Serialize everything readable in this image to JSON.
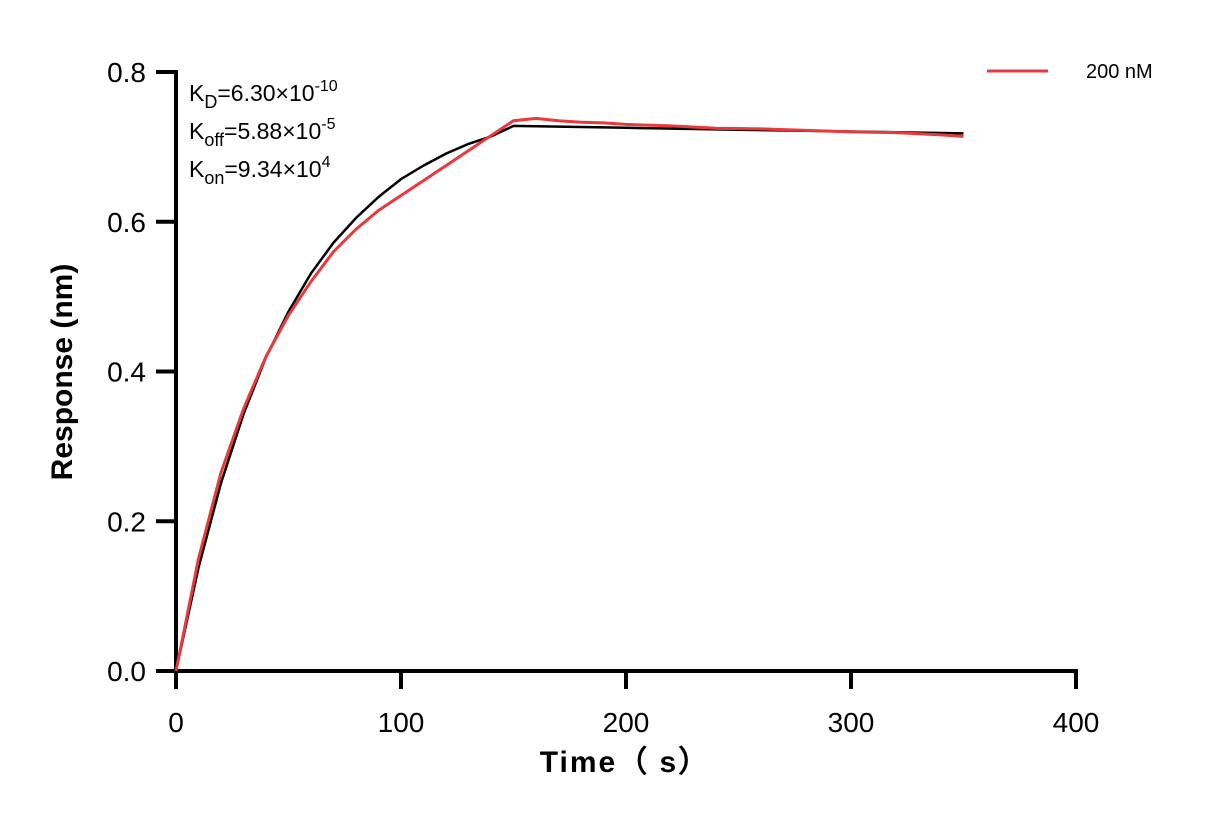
{
  "chart_data": {
    "type": "line",
    "xlabel": "Time（ s）",
    "ylabel": "Response (nm)",
    "xlim": [
      0,
      400
    ],
    "ylim": [
      0,
      0.8
    ],
    "xticks": [
      "0",
      "100",
      "200",
      "300",
      "400"
    ],
    "yticks": [
      "0.0",
      "0.2",
      "0.4",
      "0.6",
      "0.8"
    ],
    "grid": false,
    "legend_position": "top-right",
    "annotations": [
      {
        "main": "K",
        "sub": "D",
        "eq": "=6.30×10",
        "sup": "-10"
      },
      {
        "main": "K",
        "sub": "off",
        "eq": "=5.88×10",
        "sup": "-5"
      },
      {
        "main": "K",
        "sub": "on",
        "eq": "=9.34×10",
        "sup": "4"
      }
    ],
    "series": [
      {
        "name": "200 nM",
        "color": "#e8393c",
        "x": [
          0,
          10,
          20,
          30,
          40,
          50,
          60,
          70,
          80,
          90,
          100,
          110,
          120,
          130,
          140,
          150,
          160,
          170,
          180,
          190,
          200,
          220,
          240,
          260,
          280,
          300,
          320,
          340,
          350
        ],
        "y": [
          0,
          0.15,
          0.265,
          0.35,
          0.42,
          0.475,
          0.52,
          0.56,
          0.59,
          0.615,
          0.635,
          0.655,
          0.675,
          0.695,
          0.715,
          0.735,
          0.738,
          0.735,
          0.733,
          0.732,
          0.73,
          0.728,
          0.725,
          0.724,
          0.722,
          0.72,
          0.719,
          0.716,
          0.714
        ]
      },
      {
        "role": "fit",
        "color": "#000000",
        "x": [
          0,
          10,
          20,
          30,
          40,
          50,
          60,
          70,
          80,
          90,
          100,
          110,
          120,
          130,
          140,
          150,
          200,
          250,
          300,
          350
        ],
        "y": [
          0,
          0.138,
          0.251,
          0.343,
          0.419,
          0.48,
          0.531,
          0.572,
          0.605,
          0.633,
          0.657,
          0.675,
          0.691,
          0.704,
          0.714,
          0.728,
          0.7255,
          0.723,
          0.7205,
          0.718
        ]
      }
    ]
  }
}
